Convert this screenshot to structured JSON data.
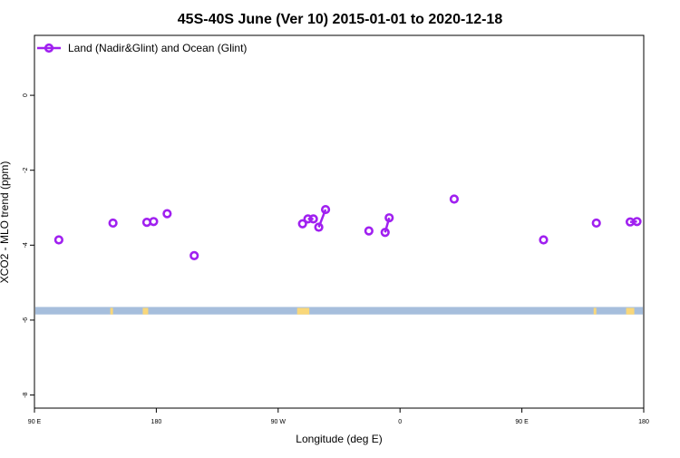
{
  "chart_data": {
    "type": "scatter",
    "title": "45S-40S June (Ver 10)   2015-01-01 to 2020-12-18",
    "xlabel": "Longitude (deg E)",
    "ylabel": "XCO2 - MLO trend (ppm)",
    "xlim": [
      90,
      540
    ],
    "ylim": [
      -8.35,
      1.6
    ],
    "x_ticks": [
      {
        "value": 90,
        "label": "90 E"
      },
      {
        "value": 180,
        "label": "180"
      },
      {
        "value": 270,
        "label": "90 W"
      },
      {
        "value": 360,
        "label": "0"
      },
      {
        "value": 450,
        "label": "90 E"
      },
      {
        "value": 540,
        "label": "180"
      }
    ],
    "y_ticks": [
      {
        "value": 0,
        "label": "0"
      },
      {
        "value": -2,
        "label": "-2"
      },
      {
        "value": -4,
        "label": "-4"
      },
      {
        "value": -6,
        "label": "-6"
      },
      {
        "value": -8,
        "label": "-8"
      }
    ],
    "legend": {
      "position": "top-left",
      "entries": [
        "Land (Nadir&Glint) and Ocean (Glint)"
      ]
    },
    "grid": false,
    "series": [
      {
        "name": "Land (Nadir&Glint) and Ocean (Glint)",
        "color": "#a020f0",
        "points": [
          {
            "x": 108,
            "y": -3.86
          },
          {
            "x": 148,
            "y": -3.41
          },
          {
            "x": 173,
            "y": -3.39
          },
          {
            "x": 178,
            "y": -3.37
          },
          {
            "x": 188,
            "y": -3.16
          },
          {
            "x": 208,
            "y": -4.28
          },
          {
            "x": 288,
            "y": -3.43
          },
          {
            "x": 292,
            "y": -3.3
          },
          {
            "x": 296,
            "y": -3.3
          },
          {
            "x": 300,
            "y": -3.52
          },
          {
            "x": 305,
            "y": -3.05
          },
          {
            "x": 337,
            "y": -3.62
          },
          {
            "x": 349,
            "y": -3.66
          },
          {
            "x": 352,
            "y": -3.27
          },
          {
            "x": 400,
            "y": -2.77
          },
          {
            "x": 466,
            "y": -3.86
          },
          {
            "x": 505,
            "y": -3.41
          },
          {
            "x": 530,
            "y": -3.38
          },
          {
            "x": 535,
            "y": -3.37
          }
        ],
        "segments": [
          [
            7,
            8
          ],
          [
            9,
            10
          ],
          [
            12,
            13
          ],
          [
            17,
            18
          ]
        ]
      }
    ],
    "map_strip": {
      "y_range": [
        -5.85,
        -5.65
      ],
      "ocean_color": "#a6bedc",
      "land_color": "#f9d77a",
      "land_longitudes": [
        [
          146,
          148
        ],
        [
          170,
          174
        ],
        [
          284,
          293
        ],
        [
          503,
          505
        ],
        [
          527,
          533
        ]
      ]
    }
  }
}
